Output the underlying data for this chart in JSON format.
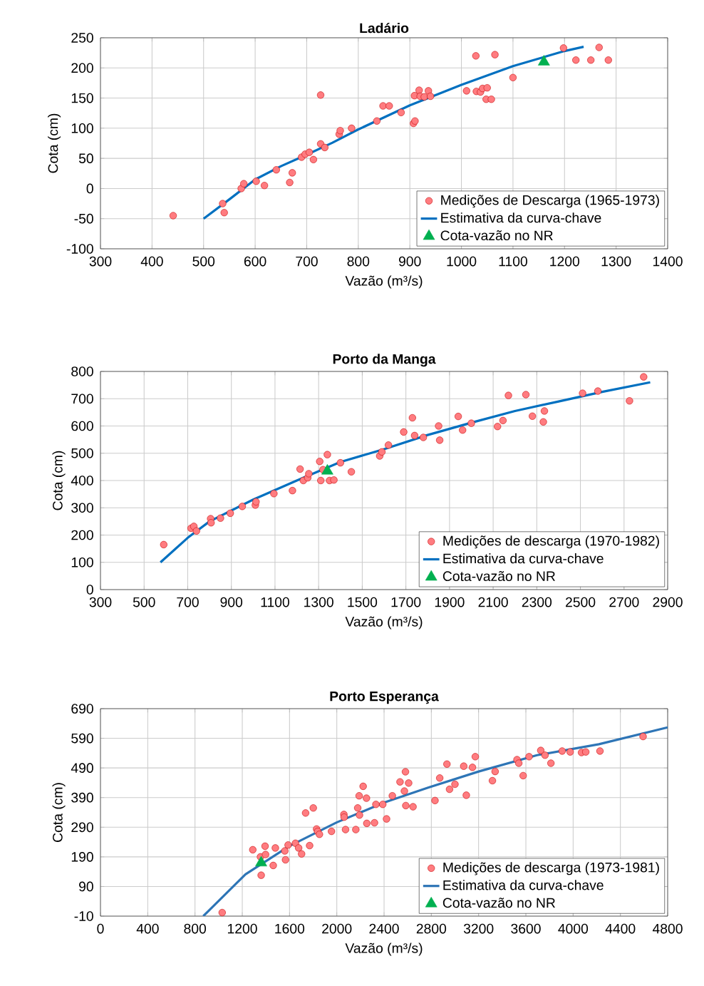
{
  "chart_data": [
    {
      "type": "scatter",
      "title": "Ladário",
      "xlabel": "Vazão (m³/s)",
      "ylabel": "Cota (cm)",
      "xlim": [
        300,
        1400
      ],
      "ylim": [
        -100,
        250
      ],
      "xticks": [
        300,
        400,
        500,
        600,
        700,
        800,
        900,
        1000,
        1100,
        1200,
        1300,
        1400
      ],
      "yticks": [
        -100,
        -50,
        0,
        50,
        100,
        150,
        200,
        250
      ],
      "grid": true,
      "legend": "bottom right",
      "series": [
        {
          "name": "Medições de Descarga (1965-1973)",
          "marker": "circle",
          "color": "#ff7c80",
          "x": [
            441,
            537,
            540,
            573,
            578,
            602,
            618,
            641,
            667,
            672,
            690,
            697,
            705,
            713,
            727,
            727,
            735,
            763,
            765,
            787,
            836,
            848,
            860,
            883,
            907,
            910,
            909,
            918,
            920,
            928,
            936,
            940,
            1010,
            1028,
            1029,
            1037,
            1041,
            1048,
            1050,
            1058,
            1065,
            1100,
            1198,
            1222,
            1251,
            1267,
            1285
          ],
          "values": [
            -45,
            -25,
            -40,
            0,
            8,
            12,
            5,
            31,
            10,
            26,
            52,
            57,
            60,
            48,
            74,
            155,
            68,
            90,
            96,
            100,
            112,
            137,
            137,
            126,
            108,
            112,
            154,
            163,
            153,
            152,
            162,
            153,
            162,
            220,
            161,
            160,
            166,
            148,
            167,
            148,
            222,
            184,
            233,
            213,
            213,
            234,
            213
          ]
        },
        {
          "name": "Estimativa da curva-chave",
          "type": "line",
          "marker": "none",
          "color": "#0070c0",
          "x": [
            500,
            550,
            600,
            650,
            700,
            750,
            800,
            900,
            1000,
            1100,
            1200,
            1237
          ],
          "values": [
            -50,
            -18,
            15,
            37,
            56,
            76,
            98,
            138,
            172,
            203,
            228,
            235
          ]
        },
        {
          "name": "Cota-vazão no NR",
          "marker": "triangle",
          "color": "#00b050",
          "x": [
            1160
          ],
          "values": [
            210
          ]
        }
      ]
    },
    {
      "type": "scatter",
      "title": "Porto da Manga",
      "xlabel": "Vazão (m³/s)",
      "ylabel": "Cota (cm)",
      "xlim": [
        300,
        2900
      ],
      "ylim": [
        0,
        800
      ],
      "xticks": [
        300,
        500,
        700,
        900,
        1100,
        1300,
        1500,
        1700,
        1900,
        2100,
        2300,
        2500,
        2700,
        2900
      ],
      "yticks": [
        0,
        100,
        200,
        300,
        400,
        500,
        600,
        700,
        800
      ],
      "grid": true,
      "legend": "bottom right",
      "series": [
        {
          "name": "Medições de descarga (1970-1982)",
          "marker": "circle",
          "color": "#ff7c80",
          "x": [
            590,
            715,
            728,
            740,
            805,
            807,
            850,
            895,
            950,
            1010,
            1013,
            1095,
            1180,
            1215,
            1230,
            1250,
            1255,
            1305,
            1310,
            1320,
            1340,
            1350,
            1370,
            1400,
            1450,
            1580,
            1590,
            1620,
            1690,
            1730,
            1740,
            1780,
            1850,
            1855,
            1940,
            1960,
            2000,
            2120,
            2145,
            2170,
            2250,
            2280,
            2330,
            2335,
            2510,
            2580,
            2725,
            2790
          ],
          "values": [
            165,
            225,
            232,
            215,
            260,
            245,
            262,
            280,
            305,
            310,
            322,
            352,
            363,
            442,
            400,
            410,
            425,
            470,
            400,
            440,
            495,
            400,
            402,
            465,
            432,
            490,
            505,
            530,
            578,
            630,
            565,
            558,
            600,
            548,
            635,
            585,
            610,
            598,
            620,
            712,
            715,
            636,
            615,
            655,
            720,
            728,
            692,
            780
          ]
        },
        {
          "name": "Estimativa da curva-chave",
          "type": "line",
          "marker": "none",
          "color": "#0070c0",
          "x": [
            575,
            700,
            800,
            1000,
            1200,
            1400,
            1600,
            1800,
            2000,
            2200,
            2400,
            2600,
            2820
          ],
          "values": [
            100,
            190,
            250,
            330,
            400,
            468,
            515,
            567,
            612,
            655,
            690,
            725,
            760
          ]
        },
        {
          "name": "Cota-vazão no NR",
          "marker": "triangle",
          "color": "#00b050",
          "x": [
            1340
          ],
          "values": [
            435
          ]
        }
      ]
    },
    {
      "type": "scatter",
      "title": "Porto Esperança",
      "xlabel": "Vazão (m³/s)",
      "ylabel": "Cota (cm)",
      "xlim": [
        0,
        4800
      ],
      "ylim": [
        -10,
        690
      ],
      "xticks": [
        0,
        400,
        800,
        1200,
        1600,
        2000,
        2400,
        2800,
        3200,
        3600,
        4000,
        4400,
        4800
      ],
      "yticks": [
        -10,
        90,
        190,
        290,
        390,
        490,
        590,
        690
      ],
      "grid": true,
      "legend": "bottom right",
      "series": [
        {
          "name": "Medições de descarga (1973-1981)",
          "marker": "circle",
          "color": "#ff7c80",
          "x": [
            1030,
            1289,
            1354,
            1360,
            1393,
            1397,
            1462,
            1480,
            1560,
            1566,
            1588,
            1650,
            1677,
            1702,
            1736,
            1770,
            1801,
            1829,
            1838,
            1853,
            1955,
            2060,
            2062,
            2074,
            2161,
            2177,
            2192,
            2189,
            2223,
            2251,
            2254,
            2319,
            2331,
            2389,
            2421,
            2470,
            2535,
            2572,
            2581,
            2584,
            2608,
            2645,
            2831,
            2871,
            2932,
            2954,
            3000,
            3074,
            3096,
            3148,
            3172,
            3317,
            3340,
            3525,
            3540,
            3577,
            3627,
            3726,
            3762,
            3812,
            3907,
            3975,
            4071,
            4107,
            4227,
            4592
          ],
          "values": [
            2,
            214,
            190,
            128,
            226,
            198,
            161,
            220,
            210,
            180,
            230,
            236,
            220,
            200,
            338,
            228,
            355,
            284,
            276,
            266,
            276,
            333,
            324,
            282,
            282,
            355,
            331,
            396,
            428,
            388,
            303,
            305,
            367,
            367,
            318,
            396,
            443,
            412,
            477,
            363,
            439,
            359,
            380,
            456,
            503,
            418,
            435,
            496,
            398,
            492,
            528,
            447,
            478,
            518,
            506,
            464,
            528,
            549,
            533,
            506,
            547,
            544,
            542,
            544,
            547,
            596
          ]
        },
        {
          "name": "Estimativa da curva-chave",
          "type": "line",
          "marker": "none",
          "color": "#2e75b6",
          "x": [
            870,
            1227,
            1597,
            1998,
            2399,
            2768,
            3201,
            3694,
            4218,
            4800
          ],
          "values": [
            -10,
            131,
            226,
            306,
            373,
            423,
            478,
            533,
            570,
            627
          ]
        },
        {
          "name": "Cota-vazão no NR",
          "marker": "triangle",
          "color": "#00b050",
          "x": [
            1360
          ],
          "values": [
            170
          ]
        }
      ]
    }
  ]
}
